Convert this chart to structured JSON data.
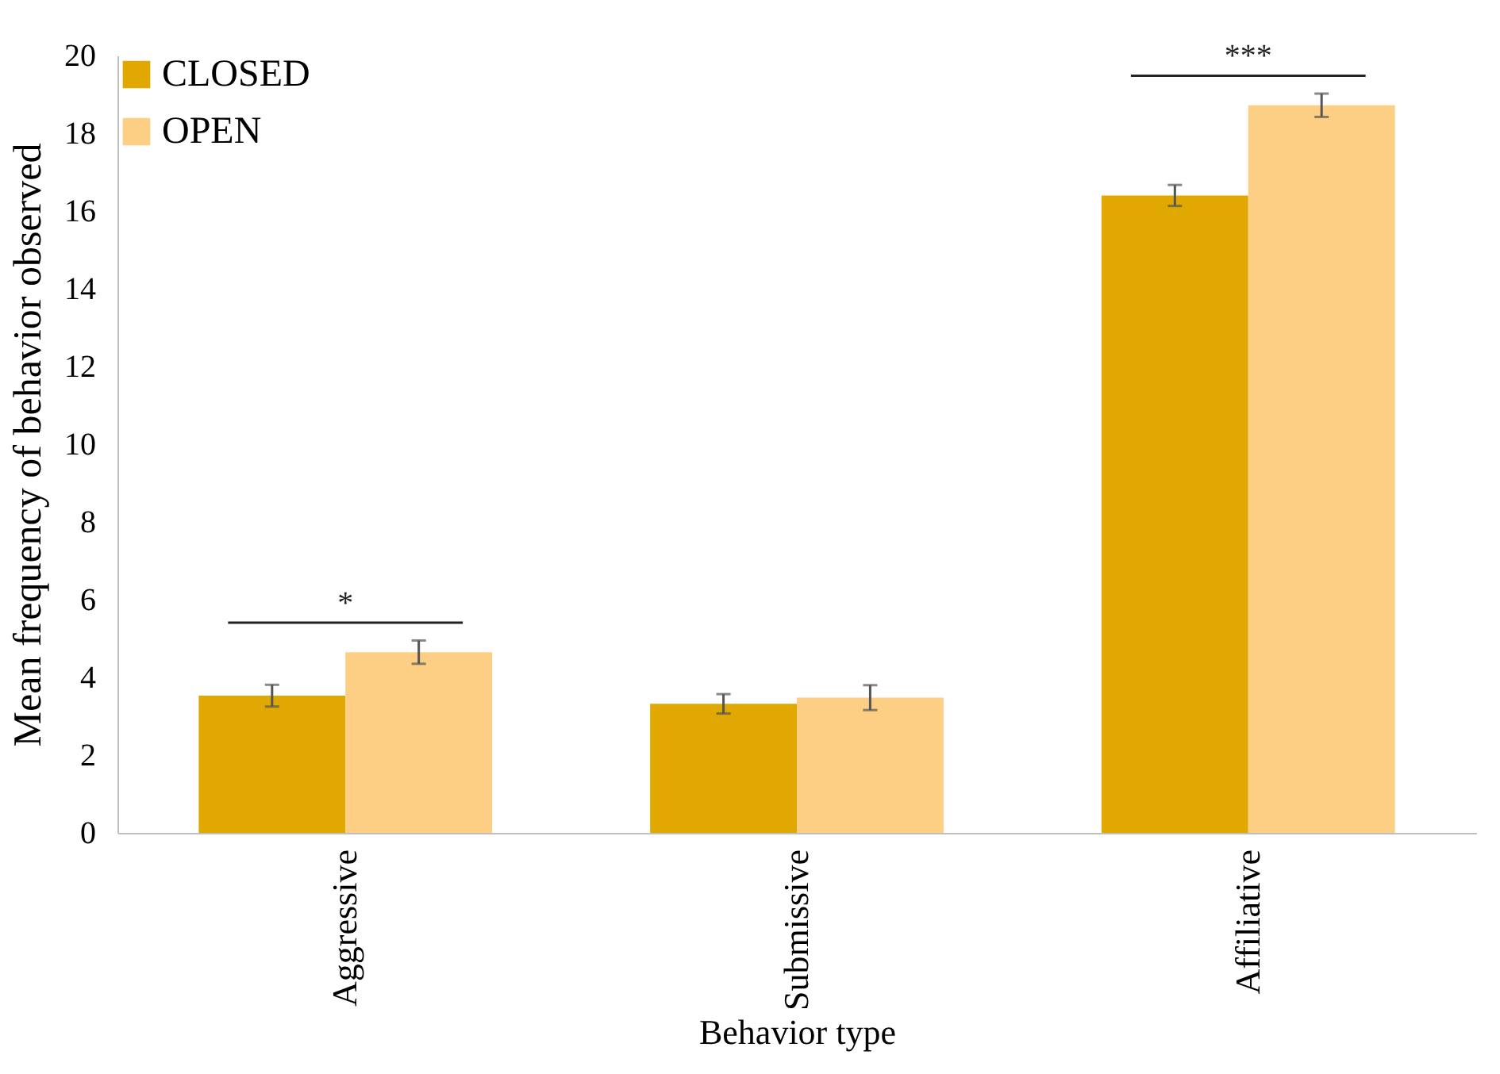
{
  "chart_data": {
    "type": "bar",
    "xlabel": "Behavior type",
    "ylabel": "Mean frequency of behavior observed",
    "categories": [
      "Aggressive",
      "Submissive",
      "Affiliative"
    ],
    "series": [
      {
        "name": "CLOSED",
        "color": "#e0a800",
        "values": [
          3.53,
          3.32,
          16.4
        ],
        "errors": [
          0.28,
          0.25,
          0.27
        ]
      },
      {
        "name": "OPEN",
        "color": "#fccf85",
        "values": [
          4.65,
          3.48,
          18.72
        ],
        "errors": [
          0.3,
          0.32,
          0.3
        ]
      }
    ],
    "ylim": [
      0,
      20
    ],
    "yticks": [
      0,
      2,
      4,
      6,
      8,
      10,
      12,
      14,
      16,
      18,
      20
    ],
    "grid": false,
    "legend": "top left",
    "annotations": [
      "*",
      "***"
    ]
  }
}
